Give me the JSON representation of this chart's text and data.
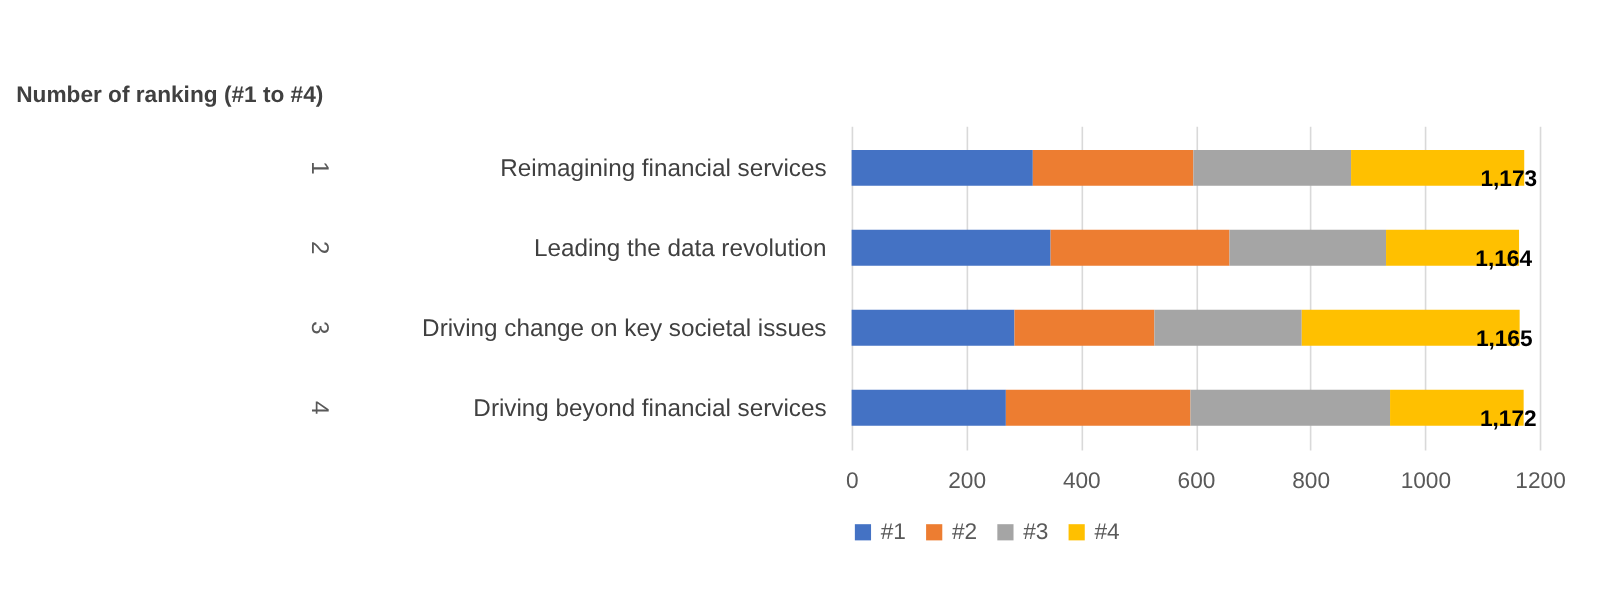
{
  "chart_data": {
    "type": "bar",
    "orientation": "horizontal",
    "stacked": true,
    "title": "Number of ranking (#1 to #4)",
    "categories": [
      "Reimagining financial services",
      "Leading the data revolution",
      "Driving change on key societal issues",
      "Driving beyond financial services"
    ],
    "series": [
      {
        "name": "#1",
        "color": "#4472c4",
        "values": [
          316,
          347,
          284,
          269
        ]
      },
      {
        "name": "#2",
        "color": "#ed7d31",
        "values": [
          280,
          312,
          244,
          322
        ]
      },
      {
        "name": "#3",
        "color": "#a5a5a5",
        "values": [
          275,
          273,
          257,
          348
        ]
      },
      {
        "name": "#4",
        "color": "#ffc000",
        "values": [
          302,
          232,
          380,
          233
        ]
      }
    ],
    "totals": [
      "1,173",
      "1,164",
      "1,165",
      "1,172"
    ],
    "annotations": [
      "1",
      "2",
      "3",
      "4"
    ],
    "xlim": [
      0,
      1200
    ],
    "xticks": [
      0,
      200,
      400,
      600,
      800,
      1000,
      1200
    ],
    "grid": "x",
    "legend": "bottom"
  }
}
